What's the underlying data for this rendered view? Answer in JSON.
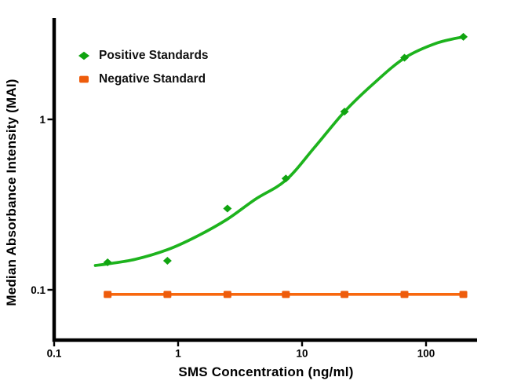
{
  "chart_data": {
    "type": "scatter",
    "title": "",
    "xlabel": "SMS Concentration (ng/ml)",
    "ylabel": "Median Absorbance Intensity (MAI)",
    "x_scale": "log",
    "y_scale": "log",
    "xlim": [
      0.1,
      260
    ],
    "ylim": [
      0.05,
      4.0
    ],
    "grid": false,
    "legend_position": "top-left",
    "background_color": "#ffffff",
    "axis_color": "#000000",
    "x_ticks": [
      {
        "value": 0.1,
        "label": "0.1"
      },
      {
        "value": 1,
        "label": "1"
      },
      {
        "value": 10,
        "label": "10"
      },
      {
        "value": 100,
        "label": "100"
      }
    ],
    "y_ticks": [
      {
        "value": 0.1,
        "label": "0.1"
      },
      {
        "value": 1,
        "label": "1"
      }
    ],
    "series": [
      {
        "name": "Positive Standards",
        "marker": "diamond",
        "line_color": "#1db31d",
        "marker_color": "#10a410",
        "line_style": "sigmoid-fit",
        "x": [
          0.27,
          0.82,
          2.5,
          7.4,
          22,
          67,
          200
        ],
        "y": [
          0.145,
          0.148,
          0.3,
          0.45,
          1.11,
          2.3,
          3.05
        ],
        "fit_curve": {
          "x": [
            0.215,
            0.27,
            0.45,
            0.82,
            1.4,
            2.5,
            4.2,
            7.4,
            12.5,
            22,
            38,
            67,
            120,
            200
          ],
          "y": [
            0.139,
            0.142,
            0.151,
            0.172,
            0.205,
            0.26,
            0.34,
            0.44,
            0.68,
            1.11,
            1.63,
            2.29,
            2.79,
            3.05
          ]
        }
      },
      {
        "name": "Negative Standard",
        "marker": "square",
        "line_color": "#f8680f",
        "marker_color": "#ee5c0c",
        "line_style": "straight",
        "x": [
          0.27,
          0.82,
          2.5,
          7.4,
          22,
          67,
          200
        ],
        "y": [
          0.094,
          0.094,
          0.094,
          0.094,
          0.094,
          0.094,
          0.094
        ]
      }
    ]
  }
}
